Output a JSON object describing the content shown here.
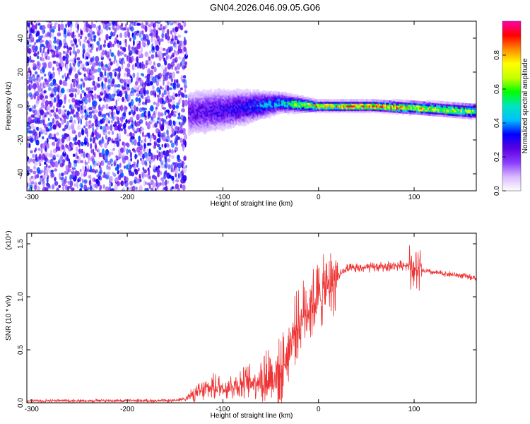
{
  "title": "GN04.2026.046.09.05.G06",
  "chart_data": [
    {
      "type": "heatmap",
      "xlabel": "Height of straight line (km)",
      "ylabel": "Frequency (Hz)",
      "xlim": [
        -305,
        165
      ],
      "ylim": [
        -50,
        50
      ],
      "xticks": [
        -300,
        -200,
        -100,
        0,
        100
      ],
      "yticks": [
        -40,
        -20,
        0,
        20,
        40
      ],
      "colorbar": {
        "label": "Normalized spectral amplitude",
        "range": [
          0,
          1
        ],
        "ticks": [
          "0.0",
          "0.2",
          "0.4",
          "0.6",
          "0.8"
        ],
        "tick_values": [
          0.0,
          0.2,
          0.4,
          0.6,
          0.8
        ],
        "colors": [
          "#ffffff",
          "#d9b8ff",
          "#8a3cff",
          "#5a00e0",
          "#0000ff",
          "#00bfff",
          "#00e5c0",
          "#00ff00",
          "#c8ff00",
          "#ffff00",
          "#ff8c00",
          "#ff0000",
          "#ff00aa"
        ]
      },
      "description_points": [
        {
          "x": -300,
          "noise_amplitude": 0.35
        },
        {
          "x": -140,
          "noise_amplitude": 0.35
        },
        {
          "x": -135,
          "noise_amplitude": 0.05
        },
        {
          "x": -130,
          "band_amplitude": 0.25,
          "band_width_hz": 12,
          "center_hz": -4
        },
        {
          "x": -80,
          "band_amplitude": 0.35,
          "band_width_hz": 9,
          "center_hz": -1
        },
        {
          "x": -40,
          "band_amplitude": 0.5,
          "band_width_hz": 5,
          "center_hz": 2
        },
        {
          "x": 0,
          "band_amplitude": 0.9,
          "band_width_hz": 2.5,
          "center_hz": 0
        },
        {
          "x": 60,
          "band_amplitude": 0.95,
          "band_width_hz": 2.5,
          "center_hz": 0
        },
        {
          "x": 100,
          "band_amplitude": 0.85,
          "band_width_hz": 3,
          "center_hz": -1
        },
        {
          "x": 160,
          "band_amplitude": 0.7,
          "band_width_hz": 3.5,
          "center_hz": -3
        }
      ]
    },
    {
      "type": "line",
      "xlabel": "Height of straight line (km)",
      "ylabel": "SNR (10 * v/v)",
      "yscale_label": "(x10⁴)",
      "xlim": [
        -305,
        165
      ],
      "ylim": [
        0,
        1.6
      ],
      "xticks": [
        -300,
        -200,
        -100,
        0,
        100
      ],
      "yticks": [
        "0.0",
        "0.5",
        "1.0",
        "1.5"
      ],
      "ytick_values": [
        0.0,
        0.5,
        1.0,
        1.5
      ],
      "color": "#ee3333",
      "series": [
        {
          "name": "SNR",
          "x": [
            -305,
            -250,
            -200,
            -150,
            -140,
            -130,
            -120,
            -110,
            -100,
            -90,
            -80,
            -70,
            -60,
            -50,
            -40,
            -35,
            -30,
            -25,
            -20,
            -15,
            -10,
            -5,
            0,
            10,
            20,
            30,
            40,
            60,
            80,
            95,
            100,
            105,
            120,
            140,
            165
          ],
          "y": [
            0.02,
            0.02,
            0.02,
            0.02,
            0.04,
            0.08,
            0.12,
            0.15,
            0.14,
            0.16,
            0.18,
            0.2,
            0.22,
            0.25,
            0.28,
            0.4,
            0.55,
            0.68,
            0.75,
            0.85,
            0.9,
            0.95,
            1.0,
            1.1,
            1.2,
            1.26,
            1.27,
            1.28,
            1.29,
            1.3,
            1.25,
            1.25,
            1.23,
            1.21,
            1.18
          ]
        }
      ]
    }
  ]
}
